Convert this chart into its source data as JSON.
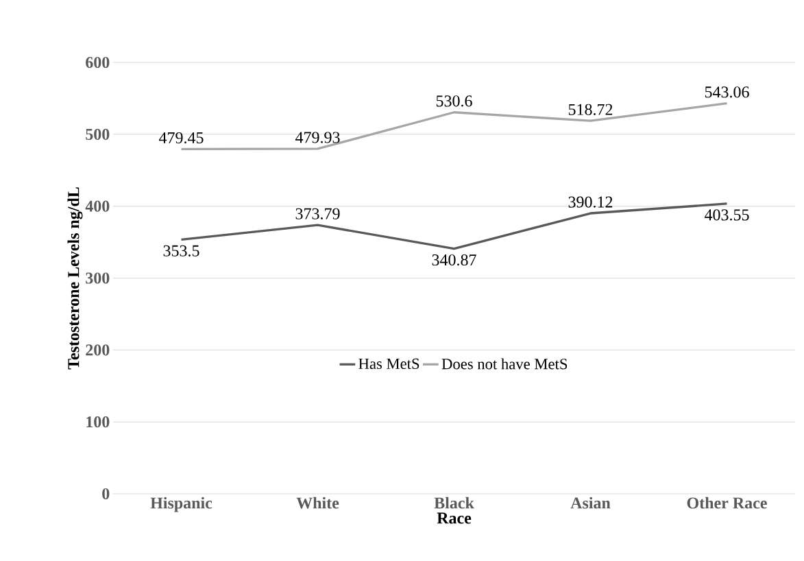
{
  "chart_data": {
    "type": "line",
    "categories": [
      "Hispanic",
      "White",
      "Black",
      "Asian",
      "Other Race"
    ],
    "xlabel": "Race",
    "ylabel": "Testosterone Levels  ng/dL",
    "series": [
      {
        "name": "Has MetS",
        "color": "#595959",
        "values": [
          353.5,
          373.79,
          340.87,
          390.12,
          403.55
        ]
      },
      {
        "name": "Does not have MetS",
        "color": "#a6a6a6",
        "values": [
          479.45,
          479.93,
          530.6,
          518.72,
          543.06
        ]
      }
    ],
    "ylim": [
      0,
      600
    ],
    "yticks": [
      0,
      100,
      200,
      300,
      400,
      500,
      600
    ],
    "grid": "y",
    "legend": "center",
    "data_labels": true
  }
}
